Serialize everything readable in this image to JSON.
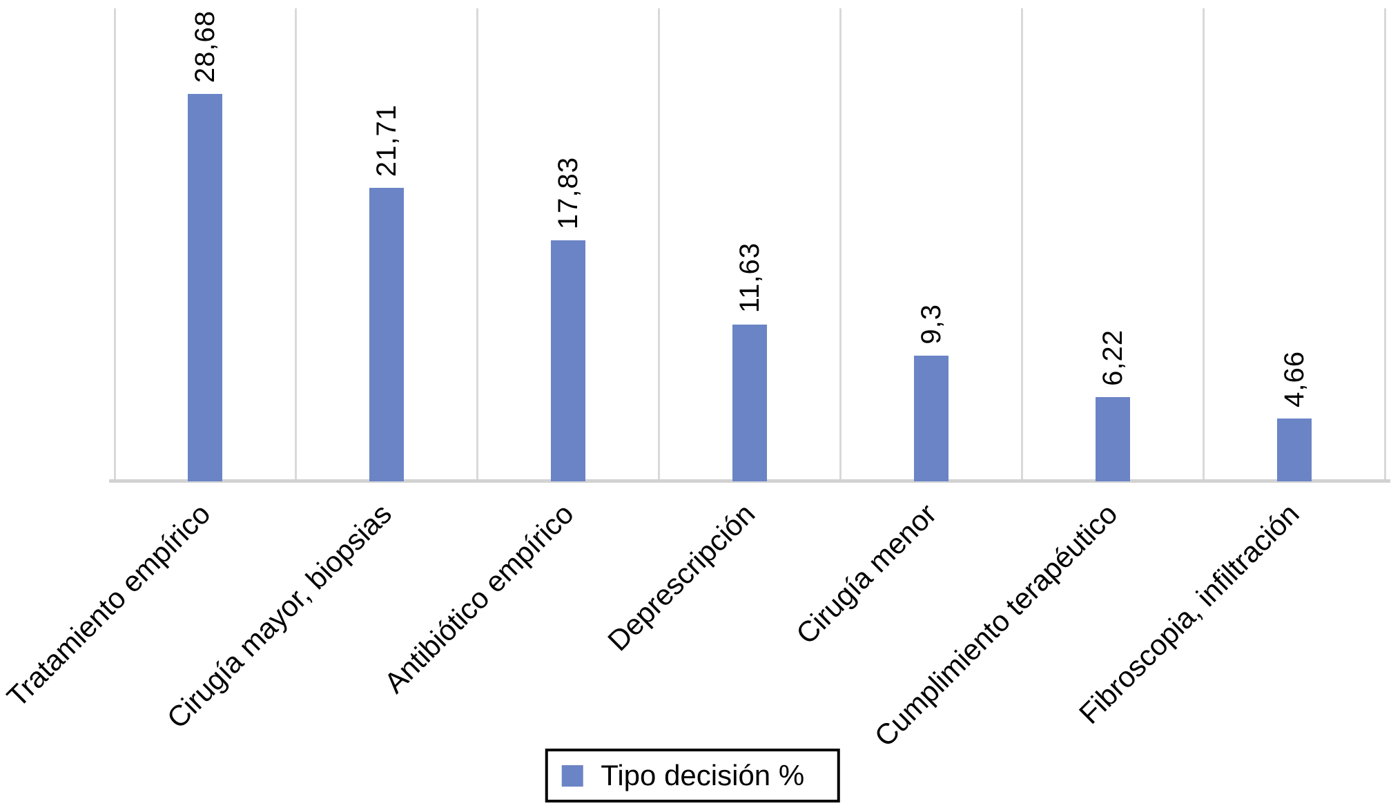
{
  "chart_data": {
    "type": "bar",
    "title": "",
    "xlabel": "",
    "ylabel": "",
    "categories": [
      "Tratamiento empírico",
      "Cirugía mayor, biopsias",
      "Antibiótico empírico",
      "Deprescripción",
      "Cirugía menor",
      "Cumplimiento terapéutico",
      "Fibroscopia, infiltración"
    ],
    "values": [
      28.68,
      21.71,
      17.83,
      11.63,
      9.3,
      6.22,
      4.66
    ],
    "value_labels": [
      "28,68",
      "21,71",
      "17,83",
      "11,63",
      "9,3",
      "6,22",
      "4,66"
    ],
    "series": [
      {
        "name": "Tipo decisión %",
        "values": [
          28.68,
          21.71,
          17.83,
          11.63,
          9.3,
          6.22,
          4.66
        ]
      }
    ],
    "legend": "Tipo decisión %",
    "legend_position": "bottom-center",
    "ylim": [
      0,
      35
    ],
    "y_axis_labels_visible": false,
    "grid": "vertical-category-separators-only",
    "value_label_rotation_deg": 90,
    "category_label_rotation_deg": 45,
    "bar_color": "#6B84C6",
    "gridline_color": "#D9D9D9",
    "axis_line_color": "#D2D2D2",
    "text_color": "#000000",
    "background_color": "#FFFFFF"
  }
}
